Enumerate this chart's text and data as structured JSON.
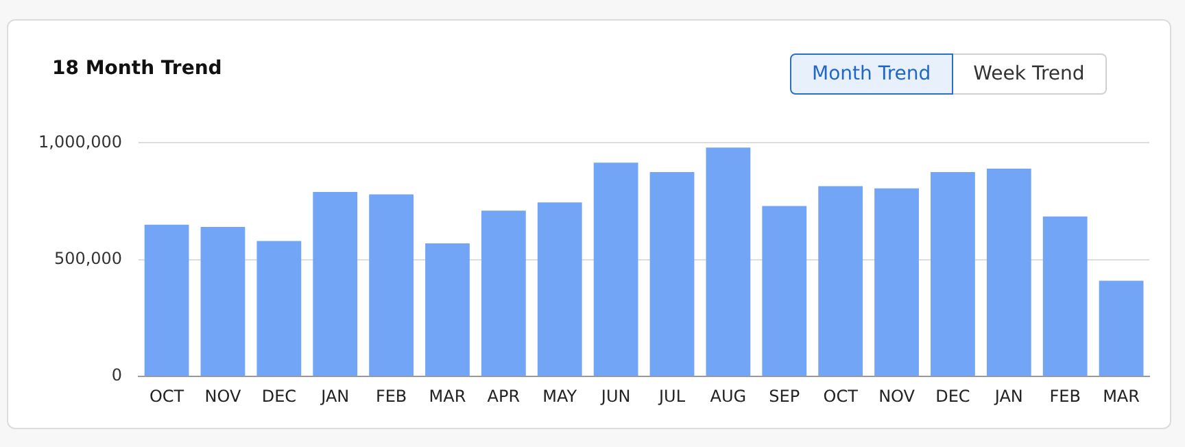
{
  "chart_data": {
    "type": "bar",
    "title": "18 Month Trend",
    "categories": [
      "OCT",
      "NOV",
      "DEC",
      "JAN",
      "FEB",
      "MAR",
      "APR",
      "MAY",
      "JUN",
      "JUL",
      "AUG",
      "SEP",
      "OCT",
      "NOV",
      "DEC",
      "JAN",
      "FEB",
      "MAR"
    ],
    "values": [
      650000,
      640000,
      580000,
      790000,
      780000,
      570000,
      710000,
      745000,
      915000,
      875000,
      980000,
      730000,
      815000,
      805000,
      875000,
      890000,
      685000,
      410000
    ],
    "color": "#72a5f5",
    "ylim": [
      0,
      1000000
    ],
    "yticks": [
      {
        "value": 0,
        "label": "0"
      },
      {
        "value": 500000,
        "label": "500,000"
      },
      {
        "value": 1000000,
        "label": "1,000,000"
      }
    ],
    "grid": "y",
    "annotations": [
      "Month Trend",
      "Week Trend"
    ]
  }
}
